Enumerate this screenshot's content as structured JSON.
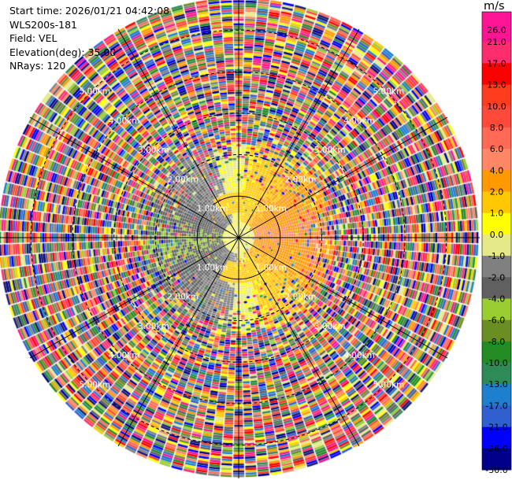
{
  "info": {
    "start_time": "Start time: 2026/01/21 04:42:08",
    "instrument": "WLS200s-181",
    "field": "Field: VEL",
    "elevation": "Elevation(deg): 35.00",
    "nrays": "NRays: 120"
  },
  "colorbar": {
    "unit": "m/s",
    "ticks": [
      "26.0",
      "21.0",
      "17.0",
      "13.0",
      "10.0",
      "8.0",
      "6.0",
      "4.0",
      "2.0",
      "1.0",
      "0.0",
      "-1.0",
      "-2.0",
      "-4.0",
      "-6.0",
      "-8.0",
      "-10.0",
      "-13.0",
      "-17.0",
      "-21.0",
      "-26.0",
      "-30.0"
    ],
    "colors": [
      "#ff1493",
      "#ff2d6e",
      "#ff0000",
      "#ff3b1e",
      "#ff4a3a",
      "#ff6a55",
      "#ff8766",
      "#ff9900",
      "#ffc800",
      "#ffff00",
      "#e5e98a",
      "#808080",
      "#606060",
      "#9acd32",
      "#6b8e23",
      "#228b22",
      "#2e8b57",
      "#1e7fcf",
      "#3060d0",
      "#0000ff",
      "#00008b",
      "#191970"
    ]
  },
  "chart_data": {
    "type": "heatmap",
    "projection": "polar-ppi",
    "field": "VEL",
    "units": "m/s",
    "nrays": 120,
    "elevation_deg": 35.0,
    "range_rings_km": [
      1.0,
      2.0,
      3.0,
      4.0,
      5.0
    ],
    "range_labels": [
      "1.00km",
      "2.00km",
      "3.00km",
      "4.00km",
      "5.00km"
    ],
    "max_range_km": 5.8,
    "color_range": [
      -30.0,
      26.0
    ],
    "spokes_deg": [
      0,
      30,
      60,
      90,
      120,
      150,
      180,
      210,
      240,
      270,
      300,
      330
    ],
    "velocity_structure": {
      "near_zone_km": [
        0.0,
        1.2
      ],
      "toward_sector_deg": [
        200,
        330
      ],
      "toward_color": "green",
      "away_sector_deg": [
        20,
        150
      ],
      "away_color": "orange",
      "noise_begins_km": 2.3
    }
  }
}
